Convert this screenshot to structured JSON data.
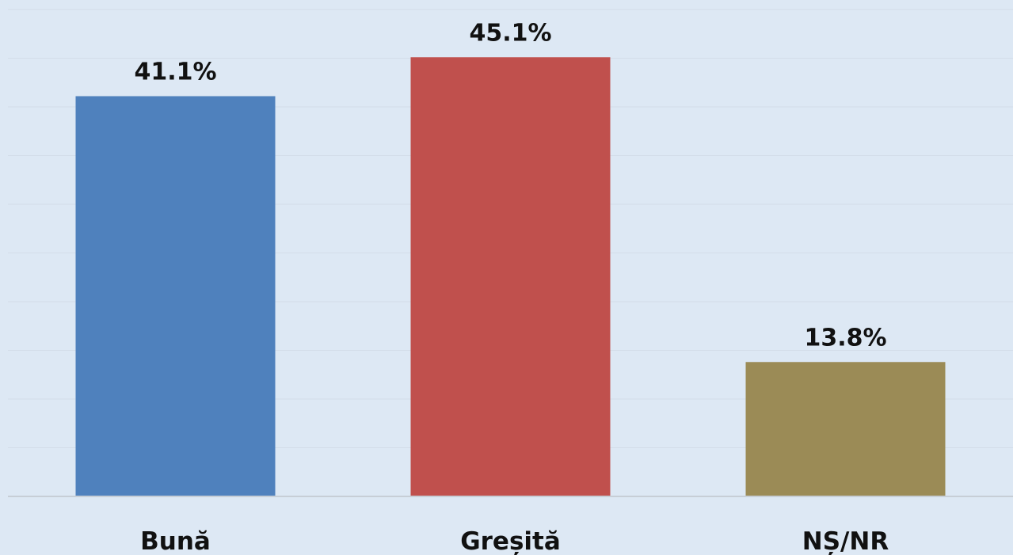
{
  "chart_data": {
    "type": "bar",
    "title": "",
    "xlabel": "",
    "ylabel": "",
    "categories": [
      "Bună",
      "Greșită",
      "NȘ/NR"
    ],
    "values": [
      41.1,
      45.1,
      13.8
    ],
    "value_labels": [
      "41.1%",
      "45.1%",
      "13.8%"
    ],
    "colors": [
      "#4f81bd",
      "#c0504d",
      "#9b8b56"
    ],
    "ylim": [
      0,
      50
    ],
    "grid": true,
    "legend": "none"
  }
}
